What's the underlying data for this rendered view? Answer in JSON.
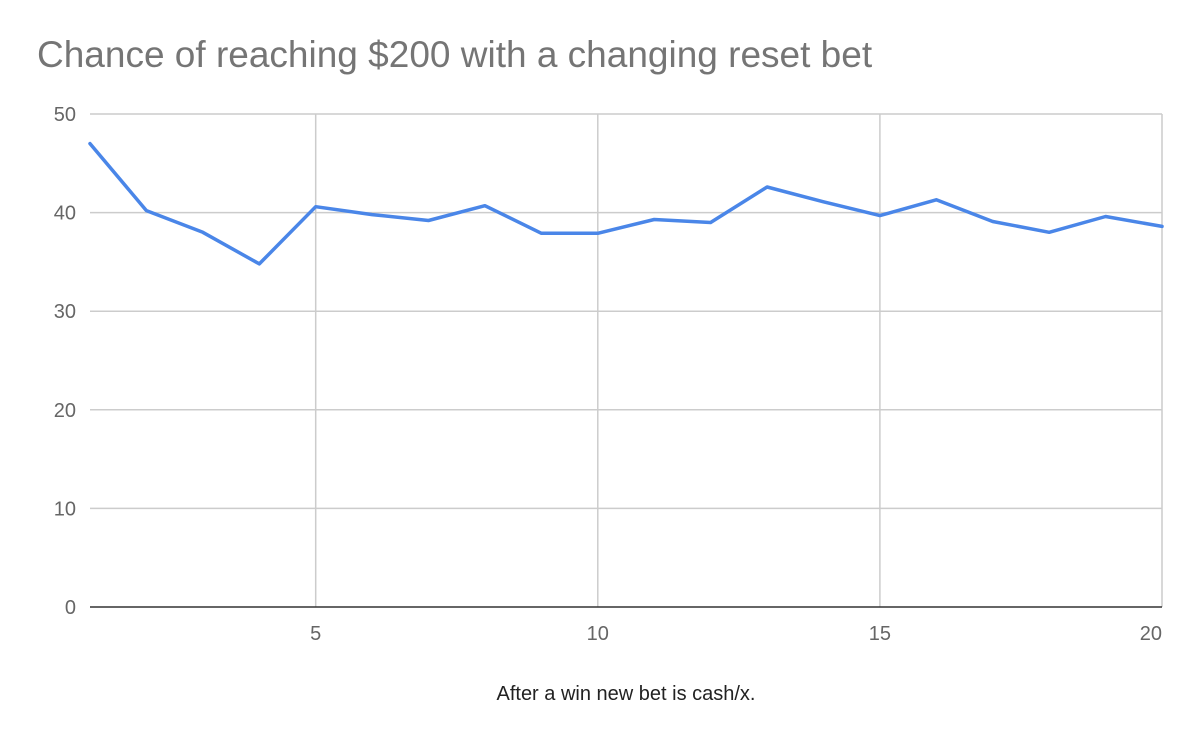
{
  "chart_data": {
    "type": "line",
    "title": "Chance of reaching $200 with a changing reset bet",
    "xlabel": "After a win new bet is cash/x.",
    "ylabel": "",
    "xlim": [
      1,
      20
    ],
    "ylim": [
      0,
      50
    ],
    "x_ticks": [
      5,
      10,
      15,
      20
    ],
    "y_ticks": [
      0,
      10,
      20,
      30,
      40,
      50
    ],
    "grid": true,
    "legend": "none",
    "series": [
      {
        "color": "#4a86e8",
        "x": [
          1,
          2,
          3,
          4,
          5,
          6,
          7,
          8,
          9,
          10,
          11,
          12,
          13,
          14,
          15,
          16,
          17,
          18,
          19,
          20
        ],
        "values": [
          47.0,
          40.2,
          38.0,
          34.8,
          40.6,
          39.8,
          39.2,
          40.7,
          37.9,
          37.9,
          39.3,
          39.0,
          42.6,
          41.1,
          39.7,
          41.3,
          39.1,
          38.0,
          39.6,
          38.6
        ]
      }
    ]
  }
}
